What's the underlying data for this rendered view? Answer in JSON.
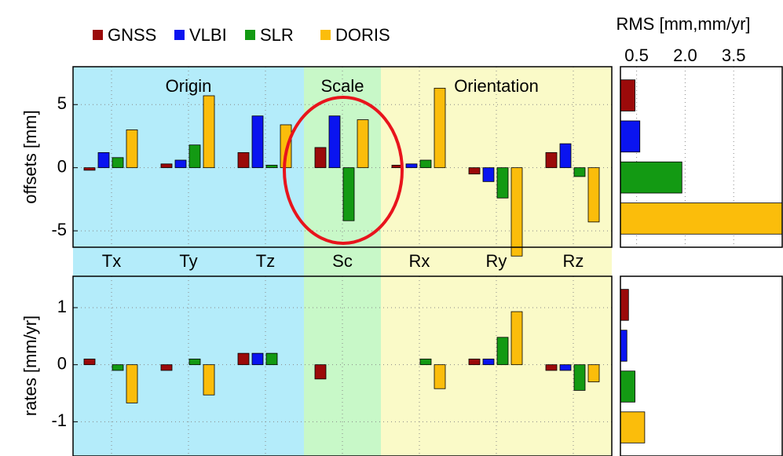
{
  "chart_data": [
    {
      "type": "bar",
      "ylabel": "offsets [mm]",
      "categories": [
        "Tx",
        "Ty",
        "Tz",
        "Sc",
        "Rx",
        "Ry",
        "Rz"
      ],
      "series": [
        {
          "name": "GNSS",
          "color": "#9b0a0a",
          "values": [
            -0.2,
            0.3,
            1.2,
            1.6,
            0.2,
            -0.5,
            1.2
          ]
        },
        {
          "name": "VLBI",
          "color": "#0a14f0",
          "values": [
            1.2,
            0.6,
            4.1,
            4.1,
            0.3,
            -1.1,
            1.9
          ]
        },
        {
          "name": "SLR",
          "color": "#139a13",
          "values": [
            0.8,
            1.8,
            0.2,
            -4.2,
            0.6,
            -2.4,
            -0.7
          ]
        },
        {
          "name": "DORIS",
          "color": "#fbbd0b",
          "values": [
            3.0,
            5.7,
            3.4,
            3.8,
            6.3,
            -7.0,
            -4.3
          ]
        }
      ],
      "ylim": [
        -6.3,
        8
      ],
      "yticks": [
        -5,
        0,
        5
      ],
      "grid": true,
      "regions": [
        {
          "label": "Origin",
          "first": 0,
          "last": 2,
          "color": "#b4ecfa"
        },
        {
          "label": "Scale",
          "first": 3,
          "last": 3,
          "color": "#c8f8c8"
        },
        {
          "label": "Orientation",
          "first": 4,
          "last": 6,
          "color": "#fafac8"
        }
      ]
    },
    {
      "type": "bar",
      "ylabel": "rates [mm/yr]",
      "series": [
        {
          "color": "#9b0a0a",
          "values": [
            0.1,
            -0.1,
            0.2,
            -0.25,
            0,
            0.1,
            -0.1
          ]
        },
        {
          "color": "#0a14f0",
          "values": [
            0,
            0,
            0.2,
            0,
            0,
            0.1,
            -0.1
          ]
        },
        {
          "color": "#139a13",
          "values": [
            -0.1,
            0.1,
            0.2,
            0,
            0.1,
            0.48,
            -0.45
          ]
        },
        {
          "color": "#fbbd0b",
          "values": [
            -0.67,
            -0.53,
            0,
            0,
            -0.42,
            0.93,
            -0.3
          ]
        }
      ],
      "ylim": [
        -1.6,
        1.55
      ],
      "yticks": [
        -1,
        0,
        1
      ],
      "grid": true
    },
    {
      "type": "hbar",
      "title": "RMS [mm,mm/yr]",
      "values": [
        0.45,
        0.6,
        1.9,
        5.0
      ],
      "colors": [
        "#9b0a0a",
        "#0a14f0",
        "#139a13",
        "#fbbd0b"
      ],
      "xlim": [
        0,
        5
      ],
      "xticks": [
        0.5,
        {
          "value": 2,
          "label": "2.0"
        },
        3.5
      ]
    },
    {
      "type": "hbar",
      "values": [
        0.25,
        0.2,
        0.45,
        0.75
      ],
      "colors": [
        "#9b0a0a",
        "#0a14f0",
        "#139a13",
        "#fbbd0b"
      ],
      "xlim": [
        0,
        5
      ]
    }
  ]
}
